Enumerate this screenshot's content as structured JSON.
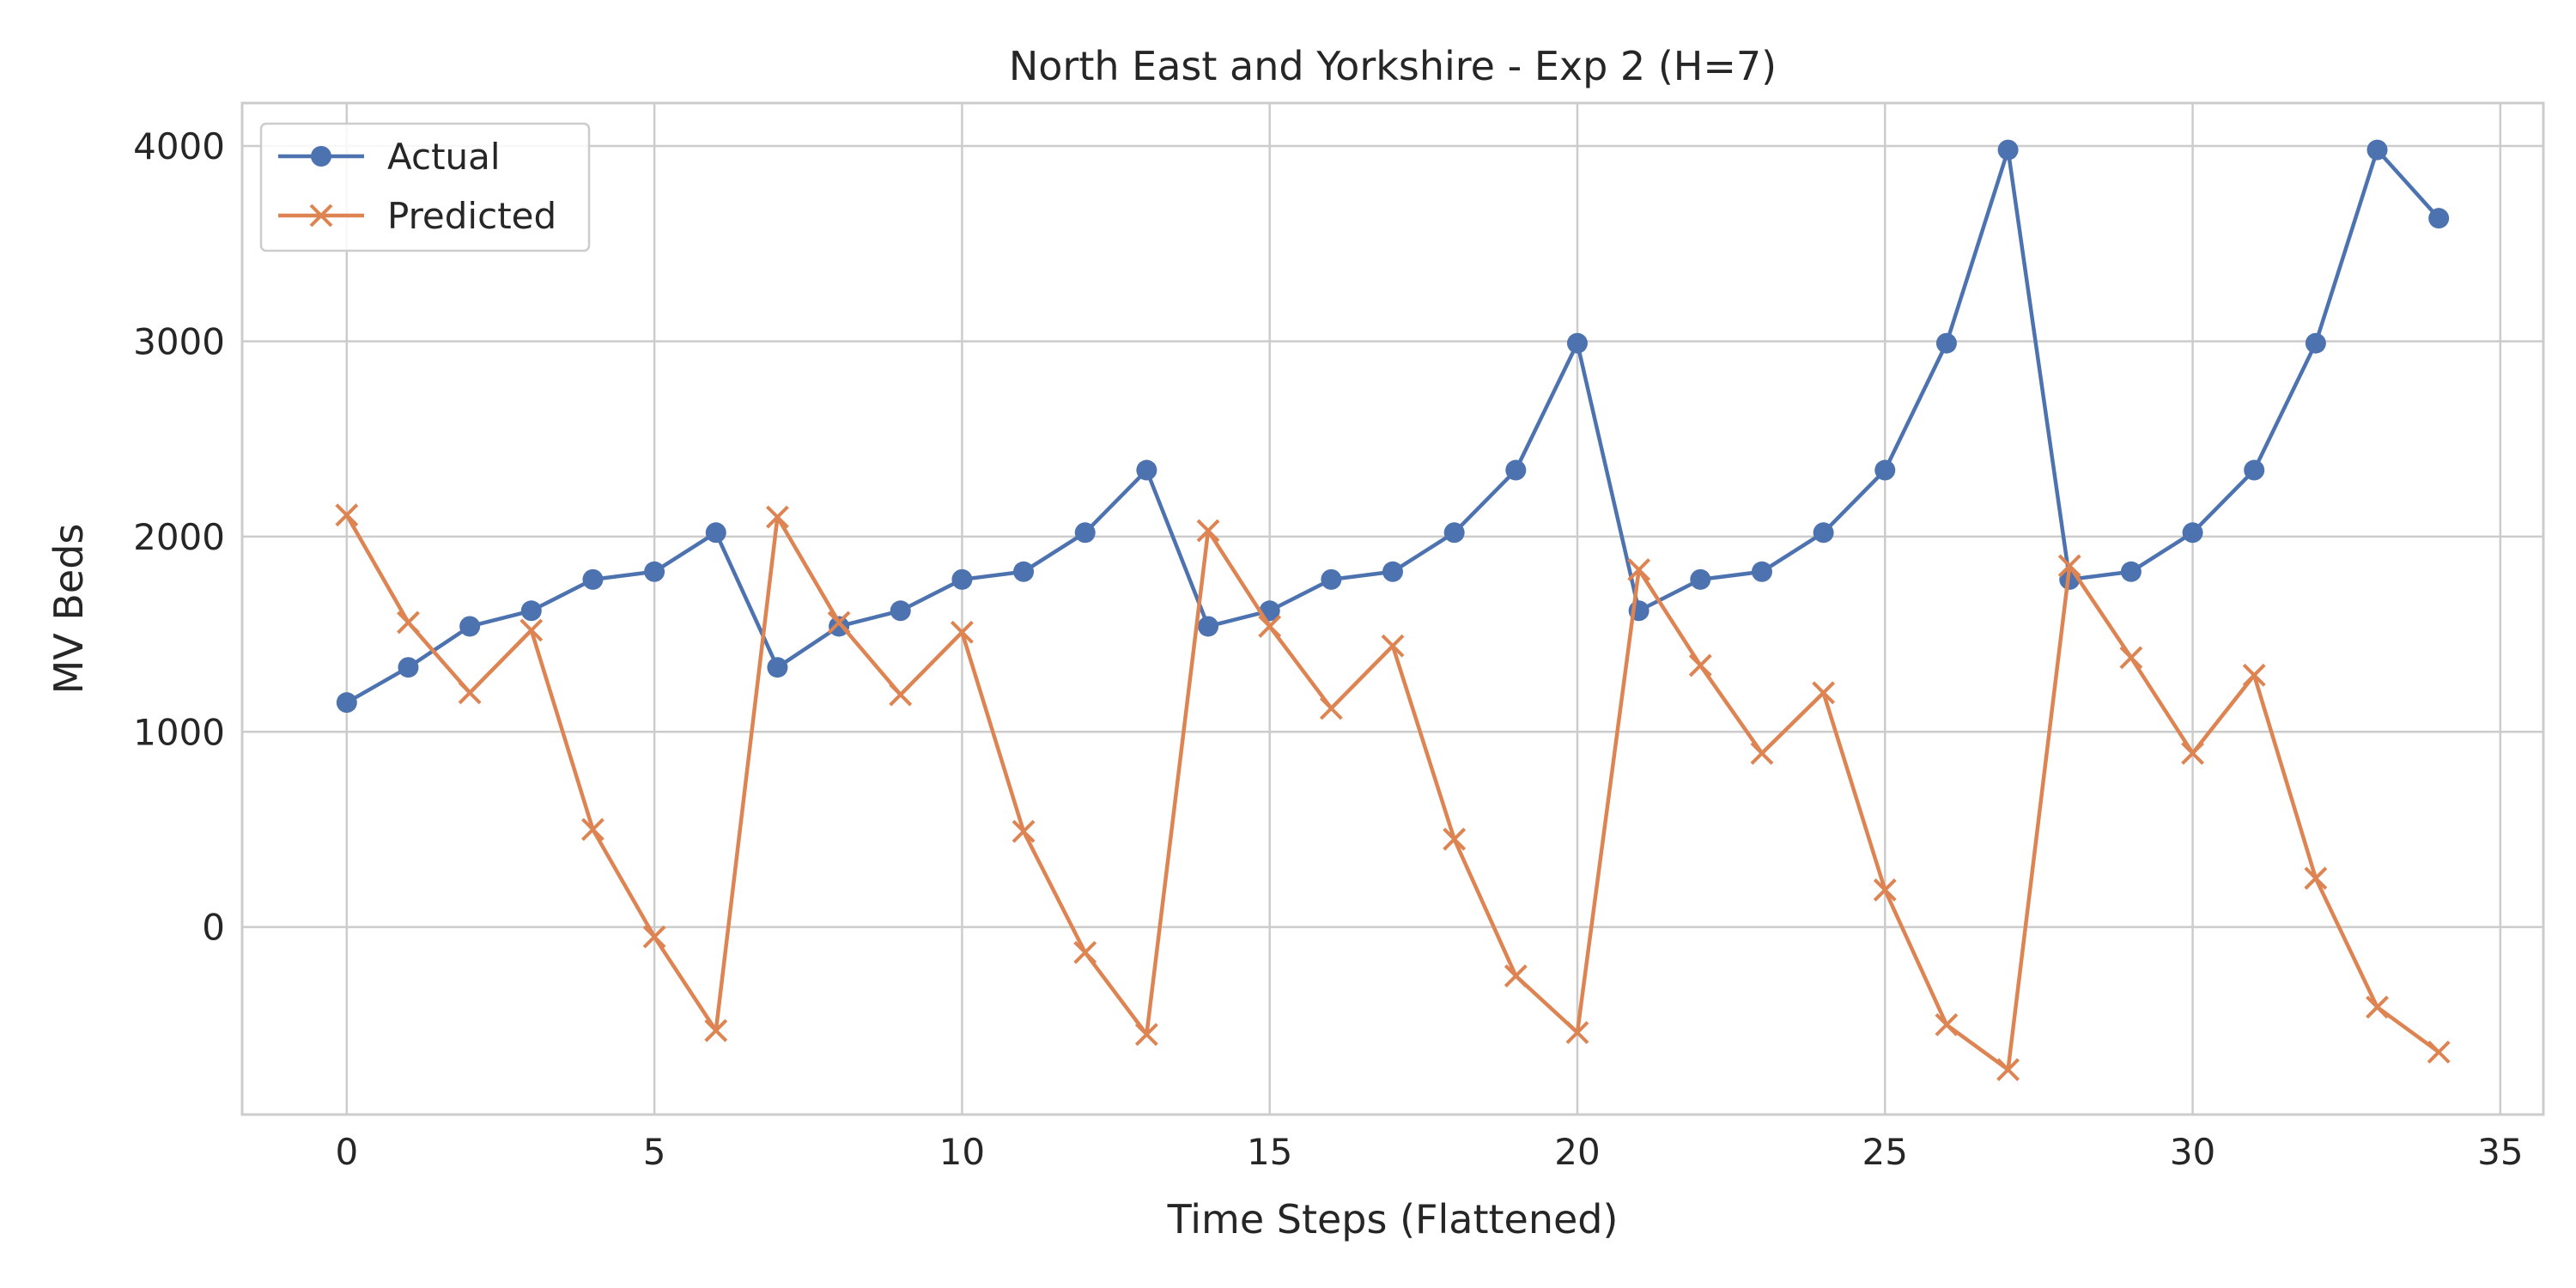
{
  "chart_data": {
    "type": "line",
    "title": "North East and Yorkshire - Exp 2 (H=7)",
    "xlabel": "Time Steps (Flattened)",
    "ylabel": "MV Beds",
    "xlim": [
      -1.7,
      35.7
    ],
    "ylim": [
      -960,
      4220
    ],
    "xticks": [
      0,
      5,
      10,
      15,
      20,
      25,
      30,
      35
    ],
    "yticks": [
      0,
      1000,
      2000,
      3000,
      4000
    ],
    "grid": true,
    "legend_position": "top-left",
    "x": [
      0,
      1,
      2,
      3,
      4,
      5,
      6,
      7,
      8,
      9,
      10,
      11,
      12,
      13,
      14,
      15,
      16,
      17,
      18,
      19,
      20,
      21,
      22,
      23,
      24,
      25,
      26,
      27,
      28,
      29,
      30,
      31,
      32,
      33,
      34
    ],
    "series": [
      {
        "name": "Actual",
        "color": "#4c72b0",
        "marker": "circle",
        "values": [
          1150,
          1330,
          1540,
          1620,
          1780,
          1820,
          2020,
          1330,
          1540,
          1620,
          1780,
          1820,
          2020,
          2340,
          1540,
          1620,
          1780,
          1820,
          2020,
          2340,
          2990,
          1620,
          1780,
          1820,
          2020,
          2340,
          2990,
          3980,
          1780,
          1820,
          2020,
          2340,
          2990,
          3980,
          3630
        ]
      },
      {
        "name": "Predicted",
        "color": "#dd8452",
        "marker": "x",
        "values": [
          2110,
          1560,
          1200,
          1520,
          500,
          -50,
          -530,
          2100,
          1560,
          1190,
          1510,
          490,
          -130,
          -550,
          2030,
          1540,
          1120,
          1440,
          450,
          -250,
          -540,
          1830,
          1340,
          890,
          1200,
          190,
          -500,
          -730,
          1850,
          1380,
          890,
          1290,
          250,
          -410,
          -640
        ]
      }
    ]
  }
}
